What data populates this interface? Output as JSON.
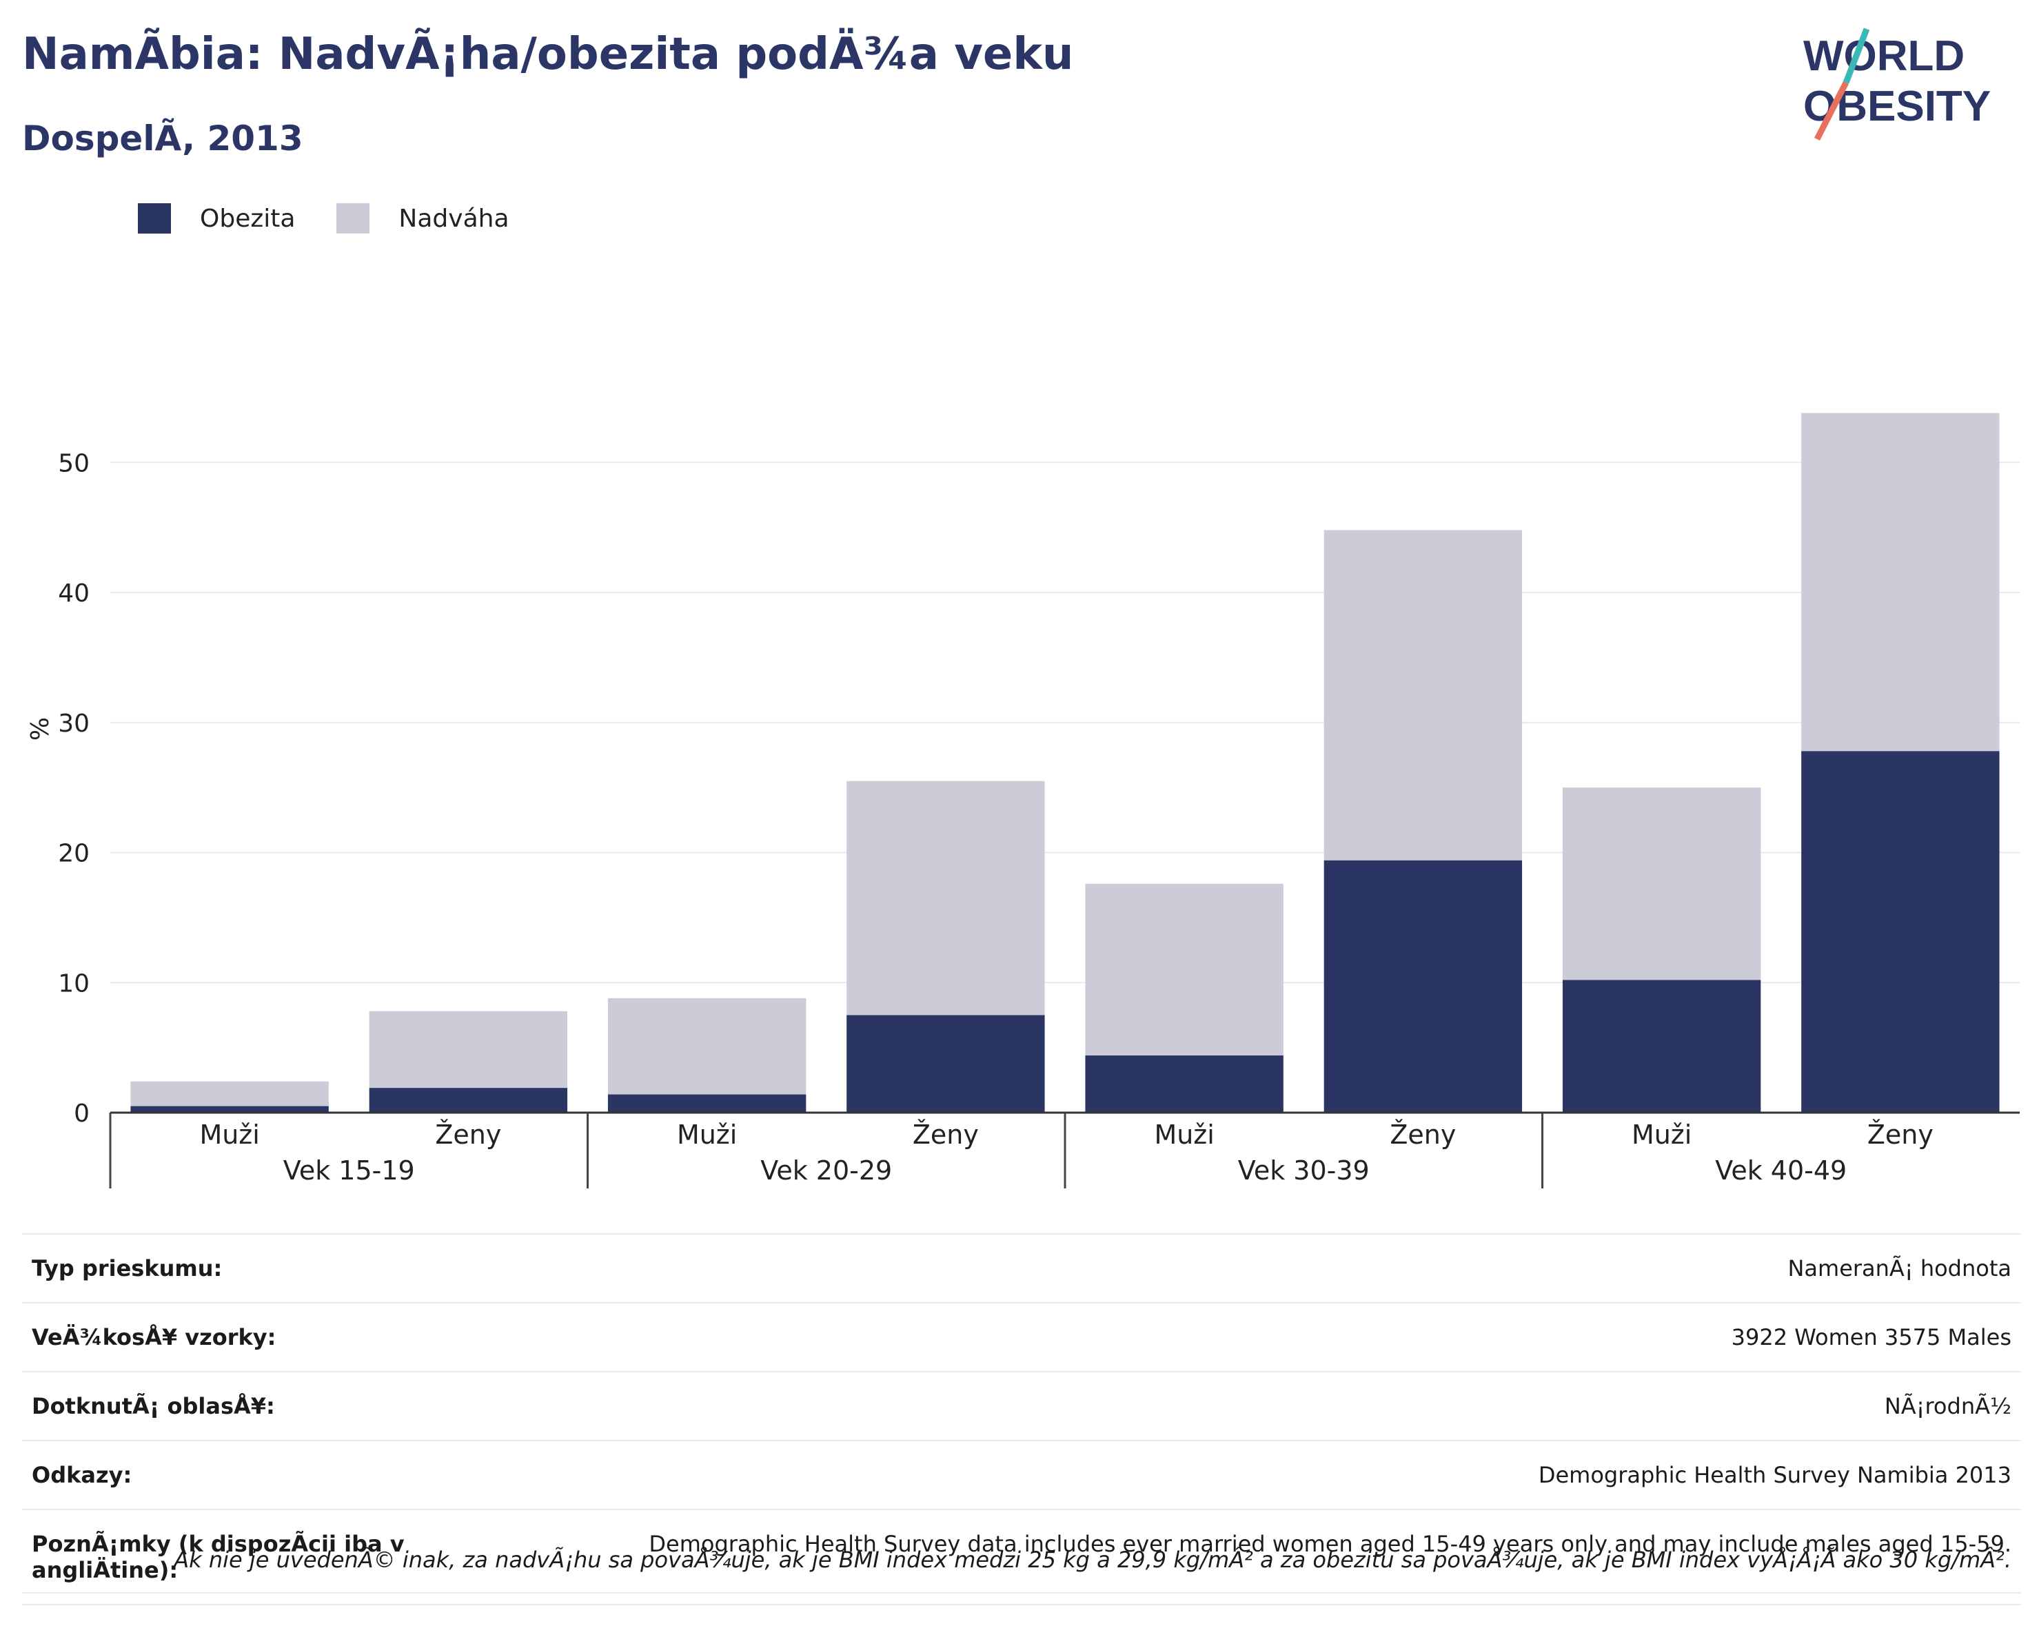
{
  "header": {
    "title": "NamÃbia: NadvÃ¡ha/obezita podÄ¾a veku",
    "subtitle": "DospelÃ, 2013",
    "logo_line1": "WORLD",
    "logo_line2": "OBESITY"
  },
  "colors": {
    "obesity": "#2a3563",
    "overweight": "#cbccd8",
    "title": "#2b3566",
    "logo_teal": "#3ab8b5",
    "logo_coral": "#e8705c"
  },
  "legend": [
    {
      "label": "Obezita",
      "color": "#2a3563"
    },
    {
      "label": "Nadváha",
      "color": "#cbccd8"
    }
  ],
  "chart_data": {
    "type": "bar",
    "stacked": true,
    "ylabel": "%",
    "ylim": [
      0,
      56
    ],
    "yticks": [
      0,
      10,
      20,
      30,
      40,
      50
    ],
    "grid": true,
    "legend_position": "top-left",
    "groups": [
      "Vek 15-19",
      "Vek 20-29",
      "Vek 30-39",
      "Vek 40-49"
    ],
    "categories": [
      "Muži",
      "Ženy",
      "Muži",
      "Ženy",
      "Muži",
      "Ženy",
      "Muži",
      "Ženy"
    ],
    "series": [
      {
        "name": "Obezita",
        "values": [
          0.5,
          1.9,
          1.4,
          7.5,
          4.4,
          19.4,
          10.2,
          27.8
        ]
      },
      {
        "name": "Nadváha",
        "values": [
          1.9,
          5.9,
          7.4,
          18.0,
          13.2,
          25.4,
          14.8,
          26.0
        ]
      }
    ]
  },
  "info_table": [
    {
      "key": "Typ prieskumu:",
      "value": "NameranÃ¡ hodnota"
    },
    {
      "key": "VeÄ¾kosÅ¥ vzorky:",
      "value": "3922 Women 3575 Males"
    },
    {
      "key": "DotknutÃ¡ oblasÅ¥:",
      "value": "NÃ¡rodnÃ½"
    },
    {
      "key": "Odkazy:",
      "value": "Demographic Health Survey Namibia 2013"
    },
    {
      "key": "PoznÃ¡mky (k dispozÃcii iba v angliÄ\u001ftine):",
      "value": "Demographic Health Survey data includes ever married women aged 15-49 years only and may include males aged 15-59."
    }
  ],
  "footnote": "Ak nie je uvedenÃ© inak, za nadvÃ¡hu sa povaÅ¾uje, ak je BMI index medzi 25 kg a 29,9 kg/mÂ² a za obezitu sa povaÅ¾uje, ak je BMI index vyÅ¡Å¡Ã ako 30 kg/mÂ²."
}
